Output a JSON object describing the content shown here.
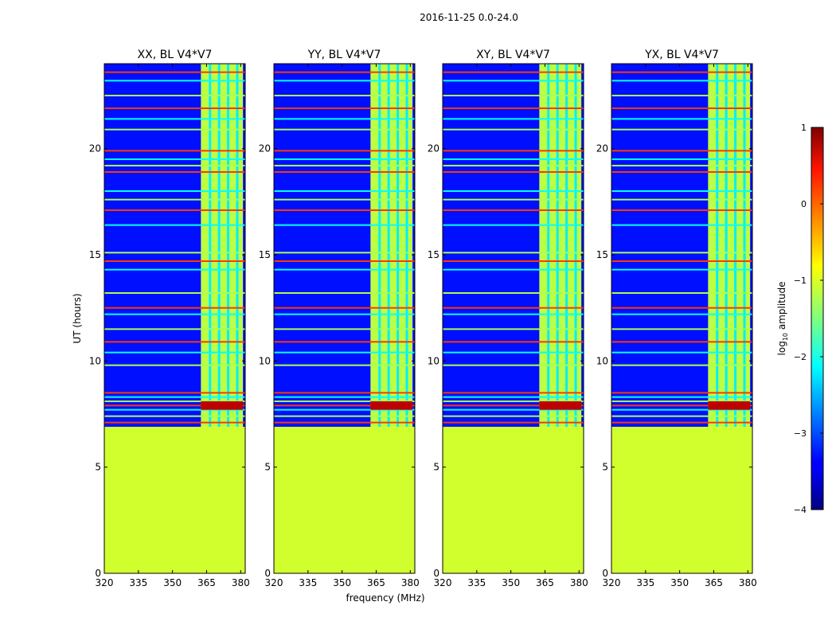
{
  "chart_data": {
    "type": "heatmap",
    "suptitle": "2016-11-25 0.0-24.0",
    "xlabel": "frequency (MHz)",
    "ylabel": "UT (hours)",
    "xlim": [
      320,
      382
    ],
    "ylim": [
      0,
      24
    ],
    "xticks": [
      "320",
      "335",
      "350",
      "365",
      "380"
    ],
    "xtick_values": [
      320,
      335,
      350,
      365,
      380
    ],
    "yticks": [
      "0",
      "5",
      "10",
      "15",
      "20"
    ],
    "ytick_values": [
      0,
      5,
      10,
      15,
      20
    ],
    "panels": [
      {
        "title": "XX, BL V4*V7",
        "amplitude_no_data": -1.1,
        "amplitude_background": -3.3,
        "amplitude_band": -1.2
      },
      {
        "title": "YY, BL V4*V7",
        "amplitude_no_data": -1.1,
        "amplitude_background": -3.3,
        "amplitude_band": -1.2
      },
      {
        "title": "XY, BL V4*V7",
        "amplitude_no_data": -1.1,
        "amplitude_background": -3.3,
        "amplitude_band": -1.2
      },
      {
        "title": "YX, BL V4*V7",
        "amplitude_no_data": -1.1,
        "amplitude_background": -3.3,
        "amplitude_band": -1.2
      }
    ],
    "no_data_until_ut": 6.9,
    "bright_band_mhz": [
      362.5,
      381
    ],
    "band_gaps_mhz": [
      366.5,
      370.5,
      374.5,
      378.5
    ],
    "rfi_lines_ut": [
      7.1,
      7.4,
      7.7,
      7.9,
      8.1,
      8.3,
      8.5,
      9.8,
      10.4,
      10.9,
      11.5,
      12.2,
      12.5,
      13.2,
      14.3,
      14.7,
      15.1,
      16.4,
      17.1,
      17.6,
      18.0,
      18.9,
      19.2,
      19.5,
      19.9,
      20.9,
      21.4,
      21.9,
      22.5,
      23.2,
      23.6
    ],
    "colorbar": {
      "label": "log10 amplitude",
      "label_main": "log",
      "label_sub": "10",
      "label_tail": " amplitude",
      "min": -4,
      "max": 1,
      "ticks": [
        "−4",
        "−3",
        "−2",
        "−1",
        "0",
        "1"
      ],
      "tick_values": [
        -4,
        -3,
        -2,
        -1,
        0,
        1
      ],
      "colormap": "jet"
    }
  }
}
